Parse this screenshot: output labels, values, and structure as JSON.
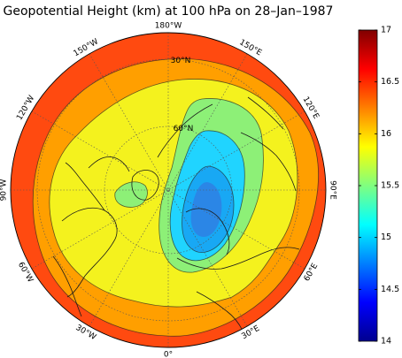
{
  "title": "Geopotential Height (km) at 100 hPa on 28–Jan–1987",
  "map": {
    "projection": "north-polar-stereographic",
    "outer_latitude": 0,
    "lat_labels": [
      "30°N",
      "60°N"
    ],
    "lon_labels": [
      "180°W",
      "150°E",
      "120°E",
      "90°E",
      "60°E",
      "30°E",
      "0°",
      "30°W",
      "60°W",
      "90°W",
      "120°W",
      "150°W"
    ],
    "levels_km": [
      14.5,
      15,
      15.5,
      16,
      16.5,
      17
    ],
    "fill_colors": {
      "band_16_5": "#ff4a10",
      "band_16": "#ff9f00",
      "band_15_5": "#f4f21e",
      "band_15": "#8df077",
      "band_14_5": "#20d4ff",
      "band_low": "#18a8f4",
      "low_core": "#2b86e6"
    },
    "coast_color": "#1a1a1a"
  },
  "colorbar": {
    "min": 14,
    "max": 17,
    "tick_labels": [
      "17",
      "16.5",
      "16",
      "15.5",
      "15",
      "14.5",
      "14"
    ],
    "colormap": "jet"
  }
}
